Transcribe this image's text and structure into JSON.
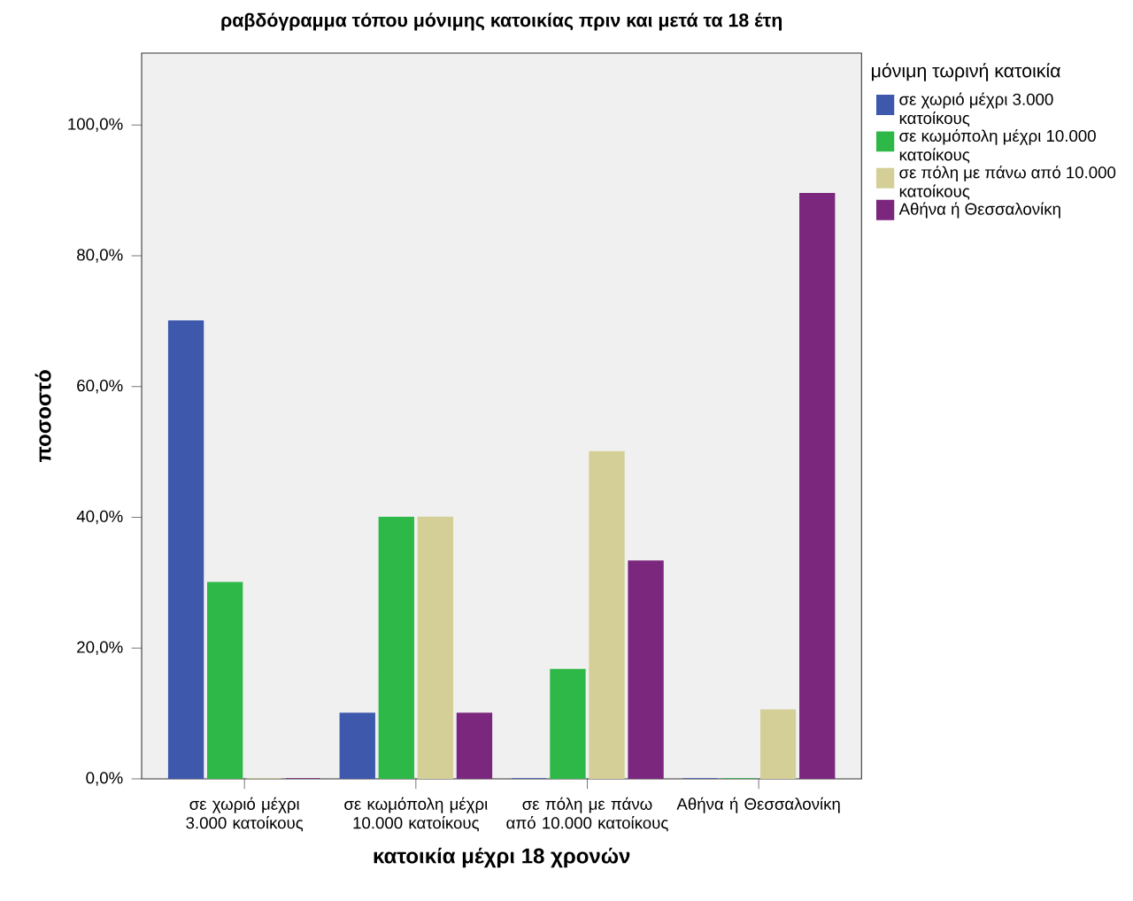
{
  "chart_data": {
    "type": "bar",
    "title": "ραβδόγραμμα τόπου μόνιμης κατοικίας πριν και μετά τα 18 έτη",
    "xlabel": "κατοικία μέχρι 18 χρονών",
    "ylabel": "ποσοστό",
    "legend_title": "μόνιμη τωρινή κατοικία",
    "legend": "right",
    "grid": false,
    "categories": [
      "σε χωριό μέχρι 3.000 κατοίκους",
      "σε κωμόπολη μέχρι 10.000 κατοίκους",
      "σε πόλη με πάνω από 10.000 κατοίκους",
      "Αθήνα ή Θεσσαλονίκη"
    ],
    "series": [
      {
        "name": "σε χωριό μέχρι 3.000 κατοίκους",
        "color": "#3e58ac",
        "values": [
          70,
          10,
          0,
          0
        ]
      },
      {
        "name": "σε κωμόπολη μέχρι 10.000 κατοίκους",
        "color": "#2eb848",
        "values": [
          30,
          40,
          16.7,
          0
        ]
      },
      {
        "name": "σε πόλη με πάνω από 10.000 κατοίκους",
        "color": "#d4cf96",
        "values": [
          0,
          40,
          50,
          10.5
        ]
      },
      {
        "name": "Αθήνα ή Θεσσαλονίκη",
        "color": "#7b277d",
        "values": [
          0,
          10,
          33.3,
          89.5
        ]
      }
    ],
    "ylim": [
      0,
      111
    ],
    "yticks": [
      {
        "value": 0,
        "label": "0,0%"
      },
      {
        "value": 20,
        "label": "20,0%"
      },
      {
        "value": 40,
        "label": "40,0%"
      },
      {
        "value": 60,
        "label": "60,0%"
      },
      {
        "value": 80,
        "label": "80,0%"
      },
      {
        "value": 100,
        "label": "100,0%"
      }
    ]
  }
}
